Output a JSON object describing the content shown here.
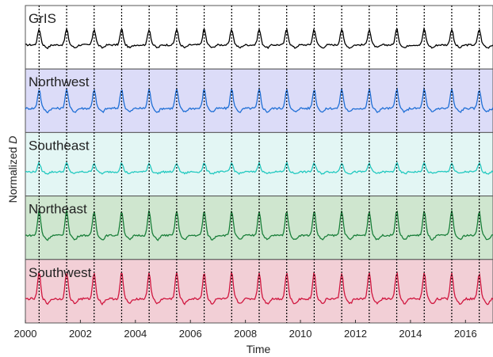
{
  "chart_data": {
    "type": "line",
    "xlabel": "Time",
    "ylabel": "Normalized D",
    "xlim": [
      2000,
      2017
    ],
    "ylim": [
      0,
      1
    ],
    "grid": false,
    "x_tick_labels": [
      "2000",
      "2002",
      "2004",
      "2006",
      "2008",
      "2010",
      "2012",
      "2014",
      "2016"
    ],
    "vertical_markers_x": [
      2000.5,
      2001.5,
      2002.5,
      2003.5,
      2004.5,
      2005.5,
      2006.5,
      2007.5,
      2008.5,
      2009.5,
      2010.5,
      2011.5,
      2012.5,
      2013.5,
      2014.5,
      2015.5,
      2016.5
    ],
    "panels": [
      {
        "label": "GrIS",
        "color": "#000000",
        "background": "#ffffff",
        "peak_amplitude": 0.45,
        "noise": 0.05
      },
      {
        "label": "Northwest",
        "color": "#1f6fd6",
        "background": "#dcdcf8",
        "peak_amplitude": 0.55,
        "noise": 0.06
      },
      {
        "label": "Southeast",
        "color": "#22c9c0",
        "background": "#e3f6f4",
        "peak_amplitude": 0.25,
        "noise": 0.05
      },
      {
        "label": "Northeast",
        "color": "#1a7f3a",
        "background": "#cfe6cf",
        "peak_amplitude": 0.7,
        "noise": 0.05
      },
      {
        "label": "Southwest",
        "color": "#d0163f",
        "background": "#f2cfd6",
        "peak_amplitude": 0.75,
        "noise": 0.06
      }
    ]
  }
}
